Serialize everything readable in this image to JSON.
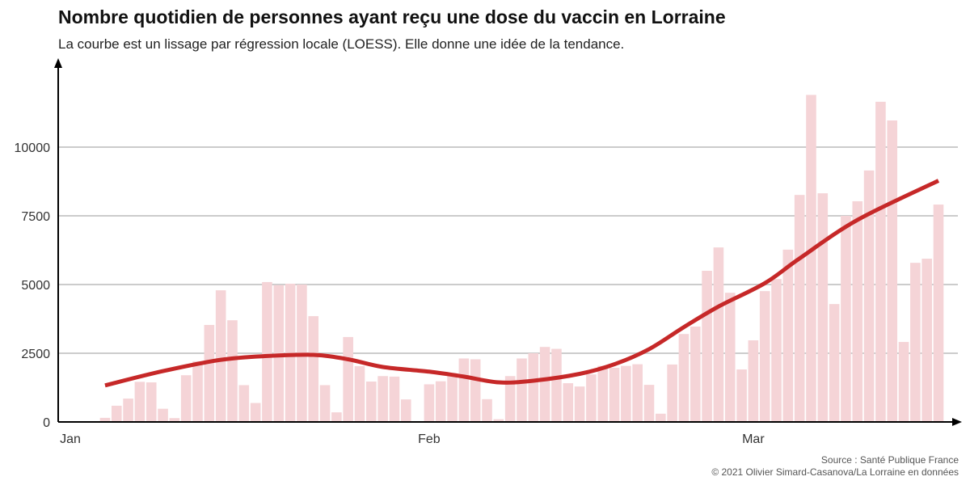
{
  "title": "Nombre quotidien de personnes ayant reçu une dose du vaccin en Lorraine",
  "subtitle": "La courbe est un lissage par régression locale (LOESS). Elle donne une idée de la tendance.",
  "source": "Source : Santé Publique France",
  "credit": "© 2021 Olivier Simard-Casanova/La Lorraine en données",
  "chart_data": {
    "type": "bar",
    "year": 2021,
    "start_date": "2021-01-04",
    "values": [
      150,
      590,
      850,
      1460,
      1440,
      480,
      140,
      1700,
      2210,
      3530,
      4790,
      3700,
      1340,
      690,
      5090,
      4980,
      5030,
      5000,
      3850,
      1340,
      350,
      3090,
      2030,
      1470,
      1670,
      1650,
      820,
      0,
      1370,
      1480,
      1770,
      2310,
      2280,
      830,
      100,
      1670,
      2310,
      2500,
      2730,
      2660,
      1410,
      1290,
      1730,
      2040,
      1970,
      2040,
      2100,
      1350,
      300,
      2090,
      3200,
      3470,
      5500,
      6350,
      4700,
      1910,
      2970,
      4760,
      5200,
      6270,
      8260,
      11900,
      8320,
      4290,
      7500,
      8030,
      9150,
      11650,
      10970,
      2910,
      5790,
      5940,
      7910
    ],
    "trend": {
      "name": "LOESS",
      "points": [
        [
          "2021-01-04",
          1330
        ],
        [
          "2021-01-09",
          1850
        ],
        [
          "2021-01-14",
          2260
        ],
        [
          "2021-01-18",
          2400
        ],
        [
          "2021-01-22",
          2440
        ],
        [
          "2021-01-25",
          2280
        ],
        [
          "2021-01-28",
          2000
        ],
        [
          "2021-02-01",
          1830
        ],
        [
          "2021-02-04",
          1650
        ],
        [
          "2021-02-07",
          1440
        ],
        [
          "2021-02-10",
          1500
        ],
        [
          "2021-02-14",
          1750
        ],
        [
          "2021-02-17",
          2100
        ],
        [
          "2021-02-20",
          2650
        ],
        [
          "2021-02-23",
          3450
        ],
        [
          "2021-02-26",
          4200
        ],
        [
          "2021-03-02",
          5050
        ],
        [
          "2021-03-05",
          5950
        ],
        [
          "2021-03-10",
          7350
        ],
        [
          "2021-03-17",
          8780
        ]
      ]
    },
    "x_ticks": [
      {
        "label": "Jan",
        "date": "2021-01-01"
      },
      {
        "label": "Feb",
        "date": "2021-02-01"
      },
      {
        "label": "Mar",
        "date": "2021-03-01"
      }
    ],
    "y_ticks": [
      0,
      2500,
      5000,
      7500,
      10000
    ],
    "ylim": [
      0,
      12500
    ],
    "grid": true,
    "colors": {
      "bar": "#f5d4d7",
      "trend": "#c62828",
      "grid": "#cccccc"
    }
  }
}
